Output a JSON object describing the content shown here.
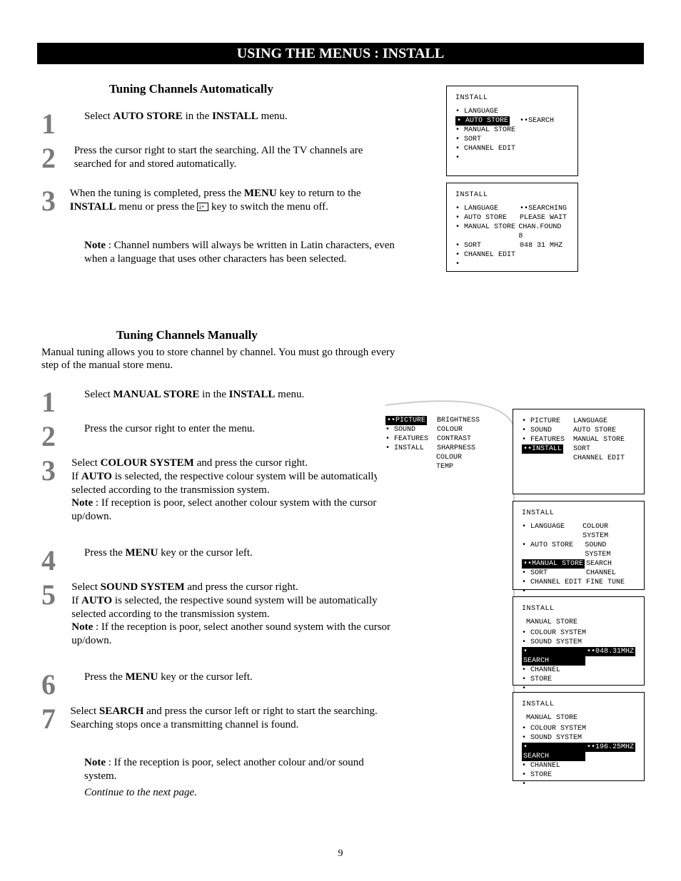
{
  "header": "USING THE MENUS : INSTALL",
  "page_number": "9",
  "section1": {
    "title": "Tuning Channels Automatically",
    "steps": {
      "s1_pre": "Select ",
      "s1_b1": "AUTO STORE",
      "s1_mid": " in the ",
      "s1_b2": "INSTALL",
      "s1_post": " menu.",
      "s2": "Press the cursor right to start the searching. All the TV channels are searched for and stored automatically.",
      "s3_pre": "When the tuning is completed, press the ",
      "s3_b1": "MENU",
      "s3_mid": " key to return to the ",
      "s3_b2": "INSTALL",
      "s3_mid2": " menu or press the ",
      "s3_post": " key to switch the menu off.",
      "note_b": "Note",
      "note": " : Channel numbers will always be written in Latin characters, even when a language that uses other characters has been selected."
    }
  },
  "section2": {
    "title": "Tuning Channels Manually",
    "lead": "Manual tuning allows you to store channel by channel. You must go through every step of the manual store menu.",
    "steps": {
      "s1_pre": "Select ",
      "s1_b1": "MANUAL STORE",
      "s1_mid": " in the ",
      "s1_b2": "INSTALL",
      "s1_post": " menu.",
      "s2": "Press the cursor right to enter the menu.",
      "s3_pre": "Select ",
      "s3_b1": "COLOUR SYSTEM",
      "s3_mid": " and press the cursor right.",
      "s3_line2_pre": "If ",
      "s3_line2_b": "AUTO",
      "s3_line2_post": " is selected, the respective colour system will be automatically selected according to the transmission system.",
      "s3_note_b": "Note",
      "s3_note": " : If reception is poor, select another colour system with the cursor up/down.",
      "s4_pre": "Press the ",
      "s4_b": "MENU",
      "s4_post": " key or the cursor left.",
      "s5_pre": "Select ",
      "s5_b": "SOUND SYSTEM",
      "s5_mid": " and press the cursor right.",
      "s5_line2_pre": "If ",
      "s5_line2_b": "AUTO",
      "s5_line2_post": " is selected, the respective sound system will be automatically selected according to the transmission system.",
      "s5_note_b": "Note",
      "s5_note": " : If the reception is poor, select another sound system with the cursor up/down.",
      "s6_pre": "Press the ",
      "s6_b": "MENU",
      "s6_post": " key or the cursor left.",
      "s7_pre": "Select ",
      "s7_b": "SEARCH",
      "s7_post": " and press the cursor left or right to start the searching. Searching stops once a transmitting channel is found.",
      "s7_note_b": "Note",
      "s7_note": " : If the reception is poor, select another colour and/or sound system.",
      "continue": "Continue to the next page."
    }
  },
  "osd": {
    "box1": {
      "title": "INSTALL",
      "items": [
        "LANGUAGE",
        "AUTO STORE",
        "MANUAL STORE",
        "SORT",
        "CHANNEL EDIT"
      ],
      "highlight_idx": 1,
      "right": "SEARCH"
    },
    "box2": {
      "title": "INSTALL",
      "items": [
        "LANGUAGE",
        "AUTO STORE",
        "MANUAL STORE",
        "SORT",
        "CHANNEL EDIT"
      ],
      "highlight_idx": -1,
      "right": [
        "SEARCHING",
        "PLEASE WAIT",
        "CHAN.FOUND 8",
        "048 31 MHZ"
      ]
    },
    "box3": {
      "left": [
        "PICTURE",
        "SOUND",
        "FEATURES",
        "INSTALL"
      ],
      "left_hl": 0,
      "right": [
        "BRIGHTNESS",
        "COLOUR",
        "CONTRAST",
        "SHARPNESS",
        "COLOUR TEMP"
      ]
    },
    "box4": {
      "left": [
        "PICTURE",
        "SOUND",
        "FEATURES",
        "INSTALL"
      ],
      "left_hl": 3,
      "right": [
        "LANGUAGE",
        "AUTO STORE",
        "MANUAL STORE",
        "SORT",
        "CHANNEL EDIT"
      ]
    },
    "box5": {
      "title": "INSTALL",
      "left": [
        "LANGUAGE",
        "AUTO STORE",
        "MANUAL STORE",
        "SORT",
        "CHANNEL EDIT"
      ],
      "left_hl": 2,
      "right": [
        "COLOUR SYSTEM",
        "SOUND SYSTEM",
        "SEARCH",
        "CHANNEL",
        "FINE TUNE"
      ]
    },
    "box6": {
      "title": "INSTALL",
      "subtitle": "MANUAL STORE",
      "items": [
        "COLOUR SYSTEM",
        "SOUND SYSTEM",
        "SEARCH",
        "CHANNEL",
        "STORE"
      ],
      "hl": 2,
      "val": "048.31MHZ"
    },
    "box7": {
      "title": "INSTALL",
      "subtitle": "MANUAL STORE",
      "items": [
        "COLOUR SYSTEM",
        "SOUND SYSTEM",
        "SEARCH",
        "CHANNEL",
        "STORE"
      ],
      "hl": 2,
      "val": "196.25MHZ"
    }
  },
  "nums": {
    "n1": "1",
    "n2": "2",
    "n3": "3",
    "n4": "4",
    "n5": "5",
    "n6": "6",
    "n7": "7"
  }
}
